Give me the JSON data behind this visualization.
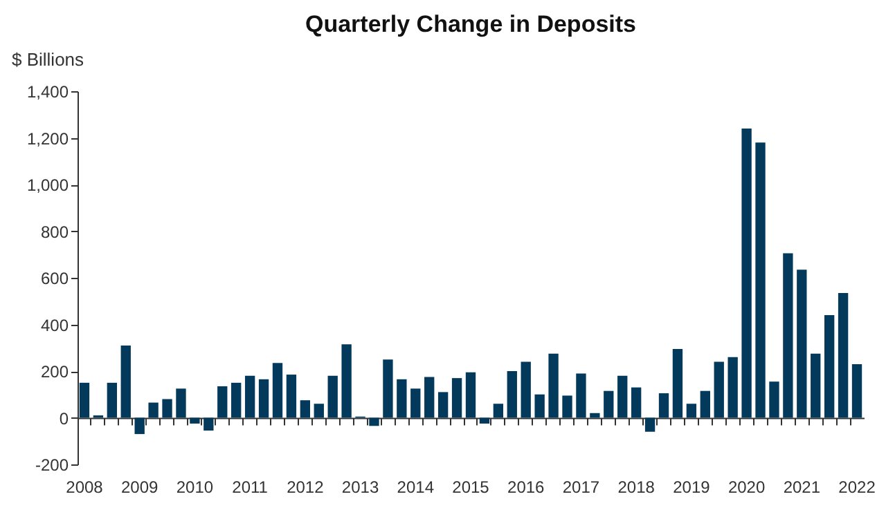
{
  "chart_data": {
    "type": "bar",
    "title": "Quarterly Change in Deposits",
    "ylabel": "$ Billions",
    "categories": [
      "2008",
      null,
      null,
      null,
      "2009",
      null,
      null,
      null,
      "2010",
      null,
      null,
      null,
      "2011",
      null,
      null,
      null,
      "2012",
      null,
      null,
      null,
      "2013",
      null,
      null,
      null,
      "2014",
      null,
      null,
      null,
      "2015",
      null,
      null,
      null,
      "2016",
      null,
      null,
      null,
      "2017",
      null,
      null,
      null,
      "2018",
      null,
      null,
      null,
      "2019",
      null,
      null,
      null,
      "2020",
      null,
      null,
      null,
      "2021",
      null,
      null,
      null,
      "2022"
    ],
    "values": [
      150,
      10,
      150,
      310,
      -70,
      65,
      80,
      125,
      -25,
      -55,
      135,
      150,
      180,
      165,
      235,
      185,
      75,
      60,
      180,
      315,
      5,
      -35,
      250,
      165,
      125,
      175,
      110,
      170,
      195,
      -25,
      60,
      200,
      240,
      100,
      275,
      95,
      190,
      20,
      115,
      180,
      130,
      -60,
      105,
      295,
      60,
      115,
      240,
      260,
      1240,
      1180,
      155,
      705,
      635,
      275,
      440,
      535,
      230
    ],
    "color": "#033a5c",
    "ylim": [
      -200,
      1400
    ],
    "yticks": [
      {
        "value": -200,
        "label": "-200"
      },
      0,
      200,
      400,
      600,
      800,
      {
        "value": 1000,
        "label": "1,000"
      },
      {
        "value": 1200,
        "label": "1,200"
      },
      {
        "value": 1400,
        "label": "1,400"
      }
    ]
  }
}
